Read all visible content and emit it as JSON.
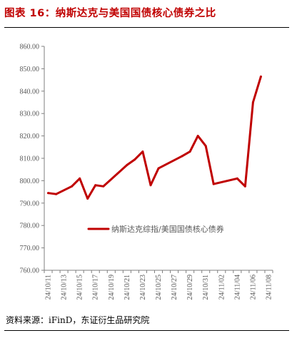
{
  "title": "图表 16：纳斯达克与美国国债核心债券之比",
  "source": "资料来源：iFinD，东证衍生品研究院",
  "colors": {
    "series": "#c00000",
    "title": "#c00000",
    "axis": "#7f7f7f",
    "text": "#595959"
  },
  "chart_data": {
    "type": "line",
    "title": "图表 16：纳斯达克与美国国债核心债券之比",
    "xlabel": "",
    "ylabel": "",
    "ylim": [
      760,
      860
    ],
    "yticks": [
      760,
      770,
      780,
      790,
      800,
      810,
      820,
      830,
      840,
      850,
      860
    ],
    "ytick_labels": [
      "760.00",
      "770.00",
      "780.00",
      "790.00",
      "800.00",
      "810.00",
      "820.00",
      "830.00",
      "840.00",
      "850.00",
      "860.00"
    ],
    "x_tick_labels": [
      "24/10/11",
      "24/10/13",
      "24/10/15",
      "24/10/17",
      "24/10/19",
      "24/10/21",
      "24/10/23",
      "24/10/25",
      "24/10/27",
      "24/10/29",
      "24/10/31",
      "24/11/02",
      "24/11/04",
      "24/11/06",
      "24/11/08"
    ],
    "x_range": [
      "2024-10-11",
      "2024-11-08"
    ],
    "grid": false,
    "legend_position": "center",
    "series": [
      {
        "name": "纳斯达克综指/美国国债核心债券",
        "x": [
          "2024-10-11",
          "2024-10-12",
          "2024-10-14",
          "2024-10-15",
          "2024-10-16",
          "2024-10-17",
          "2024-10-18",
          "2024-10-21",
          "2024-10-22",
          "2024-10-23",
          "2024-10-24",
          "2024-10-25",
          "2024-10-28",
          "2024-10-29",
          "2024-10-30",
          "2024-10-31",
          "2024-11-01",
          "2024-11-04",
          "2024-11-05",
          "2024-11-06",
          "2024-11-07"
        ],
        "values": [
          794.5,
          794.0,
          797.5,
          801.0,
          792.0,
          798.0,
          797.5,
          807.0,
          809.5,
          813.0,
          798.0,
          805.5,
          811.0,
          813.0,
          820.0,
          815.5,
          798.5,
          801.0,
          797.5,
          835.0,
          846.5
        ]
      }
    ]
  }
}
